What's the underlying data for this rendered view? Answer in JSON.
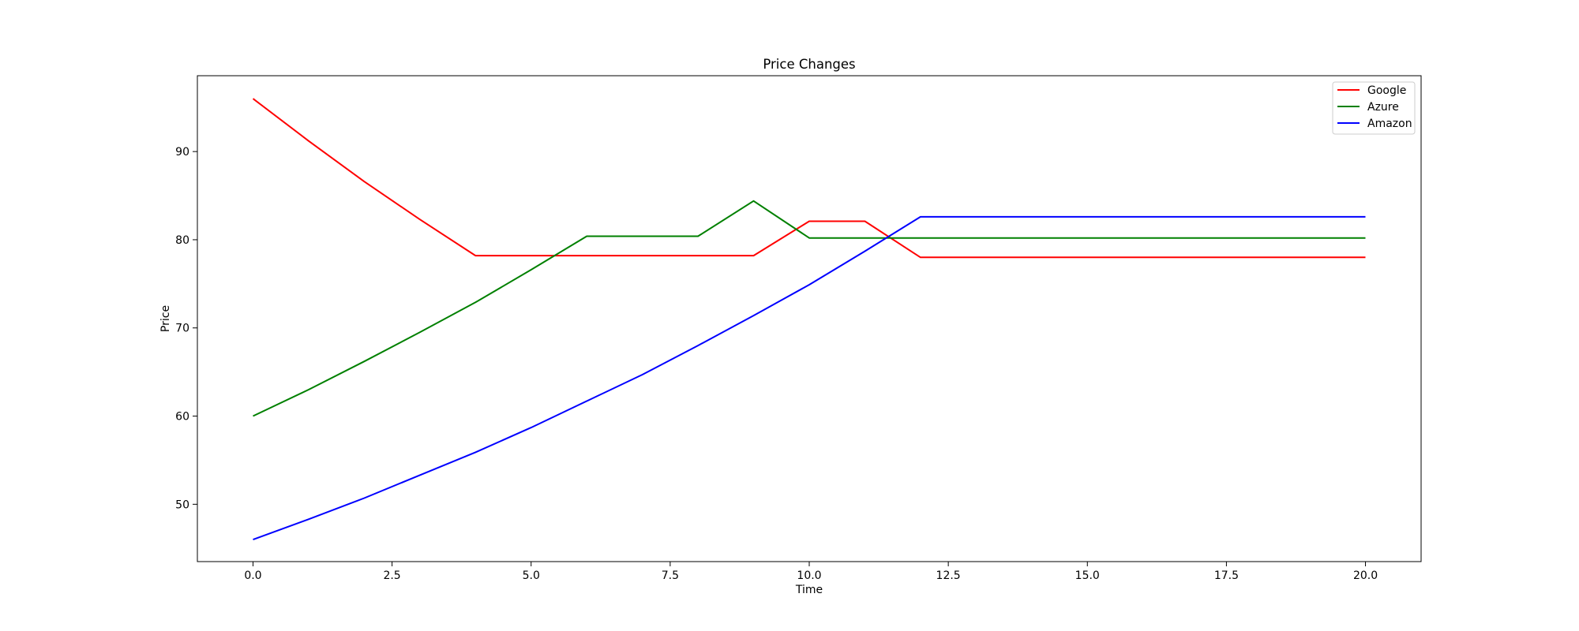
{
  "chart_data": {
    "type": "line",
    "title": "Price Changes",
    "xlabel": "Time",
    "ylabel": "Price",
    "xlim": [
      -1,
      21
    ],
    "ylim": [
      43.5,
      98.6
    ],
    "xticks": [
      0.0,
      2.5,
      5.0,
      7.5,
      10.0,
      12.5,
      15.0,
      17.5,
      20.0
    ],
    "xtick_labels": [
      "0.0",
      "2.5",
      "5.0",
      "7.5",
      "10.0",
      "12.5",
      "15.0",
      "17.5",
      "20.0"
    ],
    "yticks": [
      50,
      60,
      70,
      80,
      90
    ],
    "ytick_labels": [
      "50",
      "60",
      "70",
      "80",
      "90"
    ],
    "grid": false,
    "legend_position": "top-right",
    "x": [
      0,
      1,
      2,
      3,
      4,
      5,
      6,
      7,
      8,
      9,
      10,
      11,
      12,
      13,
      14,
      15,
      16,
      17,
      18,
      19,
      20
    ],
    "series": [
      {
        "name": "Google",
        "color": "#ff0000",
        "values": [
          96.0,
          91.2,
          86.6,
          82.3,
          78.2,
          78.2,
          78.2,
          78.2,
          78.2,
          78.2,
          82.1,
          82.1,
          78.0,
          78.0,
          78.0,
          78.0,
          78.0,
          78.0,
          78.0,
          78.0,
          78.0
        ]
      },
      {
        "name": "Azure",
        "color": "#008000",
        "values": [
          60.0,
          63.0,
          66.2,
          69.5,
          72.9,
          76.6,
          80.4,
          80.4,
          80.4,
          84.4,
          80.2,
          80.2,
          80.2,
          80.2,
          80.2,
          80.2,
          80.2,
          80.2,
          80.2,
          80.2,
          80.2
        ]
      },
      {
        "name": "Amazon",
        "color": "#0000ff",
        "values": [
          46.0,
          48.3,
          50.7,
          53.3,
          55.9,
          58.7,
          61.7,
          64.7,
          68.0,
          71.4,
          74.9,
          78.7,
          82.6,
          82.6,
          82.6,
          82.6,
          82.6,
          82.6,
          82.6,
          82.6,
          82.6
        ]
      }
    ]
  }
}
